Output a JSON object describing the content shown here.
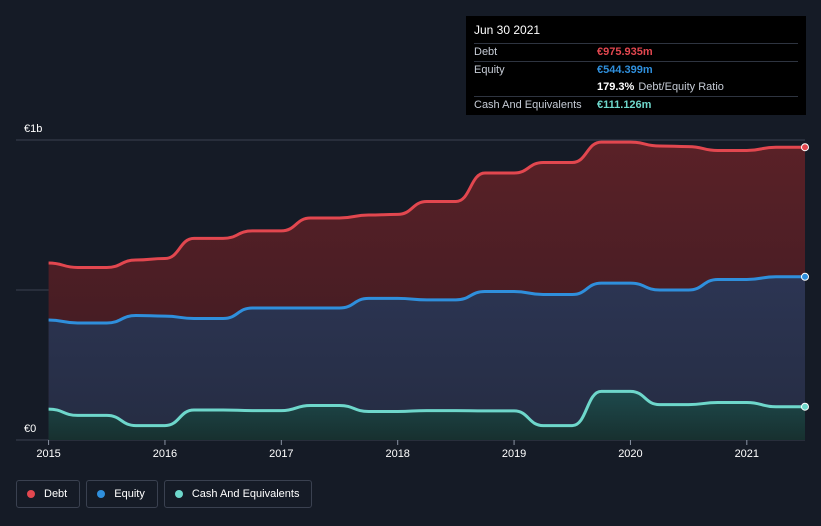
{
  "tooltip": {
    "date": "Jun 30 2021",
    "debt_label": "Debt",
    "debt_value": "€975.935m",
    "equity_label": "Equity",
    "equity_value": "€544.399m",
    "ratio_value": "179.3%",
    "ratio_label": "Debt/Equity Ratio",
    "cash_label": "Cash And Equivalents",
    "cash_value": "€111.126m"
  },
  "legend": {
    "debt": "Debt",
    "equity": "Equity",
    "cash": "Cash And Equivalents"
  },
  "colors": {
    "debt": "#e2474f",
    "equity": "#2f8fdc",
    "cash": "#6ed7cb",
    "background": "#151b26"
  },
  "chart_data": {
    "type": "area",
    "ylabel_ticks": [
      "€1b",
      "€0"
    ],
    "ylim": [
      0,
      1000
    ],
    "x_tick_labels": [
      "2015",
      "2016",
      "2017",
      "2018",
      "2019",
      "2020",
      "2021"
    ],
    "x_tick_values": [
      2015,
      2016,
      2017,
      2018,
      2019,
      2020,
      2021
    ],
    "xlim": [
      2014.72,
      2021.5
    ],
    "series": [
      {
        "name": "Debt",
        "color": "#e2474f",
        "x": [
          2015.0,
          2015.25,
          2015.5,
          2015.75,
          2016.0,
          2016.25,
          2016.5,
          2016.75,
          2017.0,
          2017.25,
          2017.5,
          2017.75,
          2018.0,
          2018.25,
          2018.5,
          2018.75,
          2019.0,
          2019.25,
          2019.5,
          2019.75,
          2020.0,
          2020.25,
          2020.5,
          2020.75,
          2021.0,
          2021.25,
          2021.5
        ],
        "values": [
          590,
          575,
          575,
          600,
          605,
          672,
          672,
          697,
          697,
          740,
          740,
          750,
          752,
          795,
          795,
          890,
          890,
          925,
          925,
          993,
          993,
          980,
          978,
          965,
          965,
          976,
          976
        ]
      },
      {
        "name": "Equity",
        "color": "#2f8fdc",
        "x": [
          2015.0,
          2015.25,
          2015.5,
          2015.75,
          2016.0,
          2016.25,
          2016.5,
          2016.75,
          2017.0,
          2017.25,
          2017.5,
          2017.75,
          2018.0,
          2018.25,
          2018.5,
          2018.75,
          2019.0,
          2019.25,
          2019.5,
          2019.75,
          2020.0,
          2020.25,
          2020.5,
          2020.75,
          2021.0,
          2021.25,
          2021.5
        ],
        "values": [
          400,
          390,
          390,
          415,
          413,
          405,
          405,
          440,
          440,
          440,
          440,
          472,
          472,
          467,
          467,
          495,
          495,
          485,
          485,
          523,
          523,
          500,
          500,
          535,
          535,
          544,
          544
        ]
      },
      {
        "name": "Cash And Equivalents",
        "color": "#6ed7cb",
        "x": [
          2015.0,
          2015.25,
          2015.5,
          2015.75,
          2016.0,
          2016.25,
          2016.5,
          2016.75,
          2017.0,
          2017.25,
          2017.5,
          2017.75,
          2018.0,
          2018.25,
          2018.5,
          2018.75,
          2019.0,
          2019.25,
          2019.5,
          2019.75,
          2020.0,
          2020.25,
          2020.5,
          2020.75,
          2021.0,
          2021.25,
          2021.5
        ],
        "values": [
          103,
          82,
          82,
          48,
          48,
          100,
          100,
          98,
          98,
          115,
          115,
          95,
          95,
          98,
          98,
          97,
          97,
          48,
          48,
          162,
          162,
          118,
          118,
          125,
          125,
          111,
          111
        ]
      }
    ]
  }
}
